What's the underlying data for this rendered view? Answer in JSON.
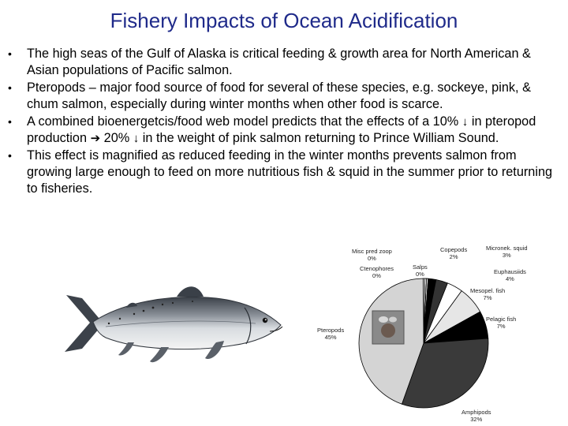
{
  "slide": {
    "title": "Fishery Impacts of Ocean Acidification",
    "bullets": [
      {
        "parts": [
          "The high seas of the Gulf of Alaska is critical feeding & growth area for North American & Asian populations of Pacific salmon."
        ]
      },
      {
        "parts": [
          "Pteropods – major food source of food for several of these species, e.g. sockeye, pink, & chum salmon, especially during winter months when other food is scarce."
        ]
      },
      {
        "p1": "A combined bioenergetcis/food web model predicts that the effects of a 10% ",
        "p2": " in pteropod production ",
        "p3": " 20% ",
        "p4": " in the weight of pink salmon returning to Prince William Sound."
      },
      {
        "parts": [
          "This effect is magnified as reduced feeding in the winter months prevents salmon from growing large enough to feed on more nutritious fish & squid in the summer prior to returning to fisheries."
        ]
      }
    ],
    "bullet_symbol": "•",
    "down_arrow": "↓",
    "right_arrow": "➔"
  },
  "chart_data": {
    "type": "pie",
    "slices": [
      {
        "label": "Misc pred zoop",
        "pct_label": "0%",
        "value": 0.4,
        "color": "#ffffff"
      },
      {
        "label": "Salps",
        "pct_label": "0%",
        "value": 0.4,
        "color": "#ffffff"
      },
      {
        "label": "Copepods",
        "pct_label": "2%",
        "value": 2,
        "color": "#000000"
      },
      {
        "label": "Micronek. squid",
        "pct_label": "3%",
        "value": 3,
        "color": "#333333"
      },
      {
        "label": "Euphausiids",
        "pct_label": "4%",
        "value": 4,
        "color": "#ffffff"
      },
      {
        "label": "Mesopel. fish",
        "pct_label": "7%",
        "value": 7,
        "color": "#e6e6e6"
      },
      {
        "label": "Pelagic fish",
        "pct_label": "7%",
        "value": 7,
        "color": "#000000"
      },
      {
        "label": "Amphipods",
        "pct_label": "32%",
        "value": 32,
        "color": "#3a3a3a"
      },
      {
        "label": "Pteropods",
        "pct_label": "45%",
        "value": 45,
        "color": "#d4d4d4"
      },
      {
        "label": "Ctenophores",
        "pct_label": "0%",
        "value": 0.4,
        "color": "#ffffff"
      }
    ]
  }
}
